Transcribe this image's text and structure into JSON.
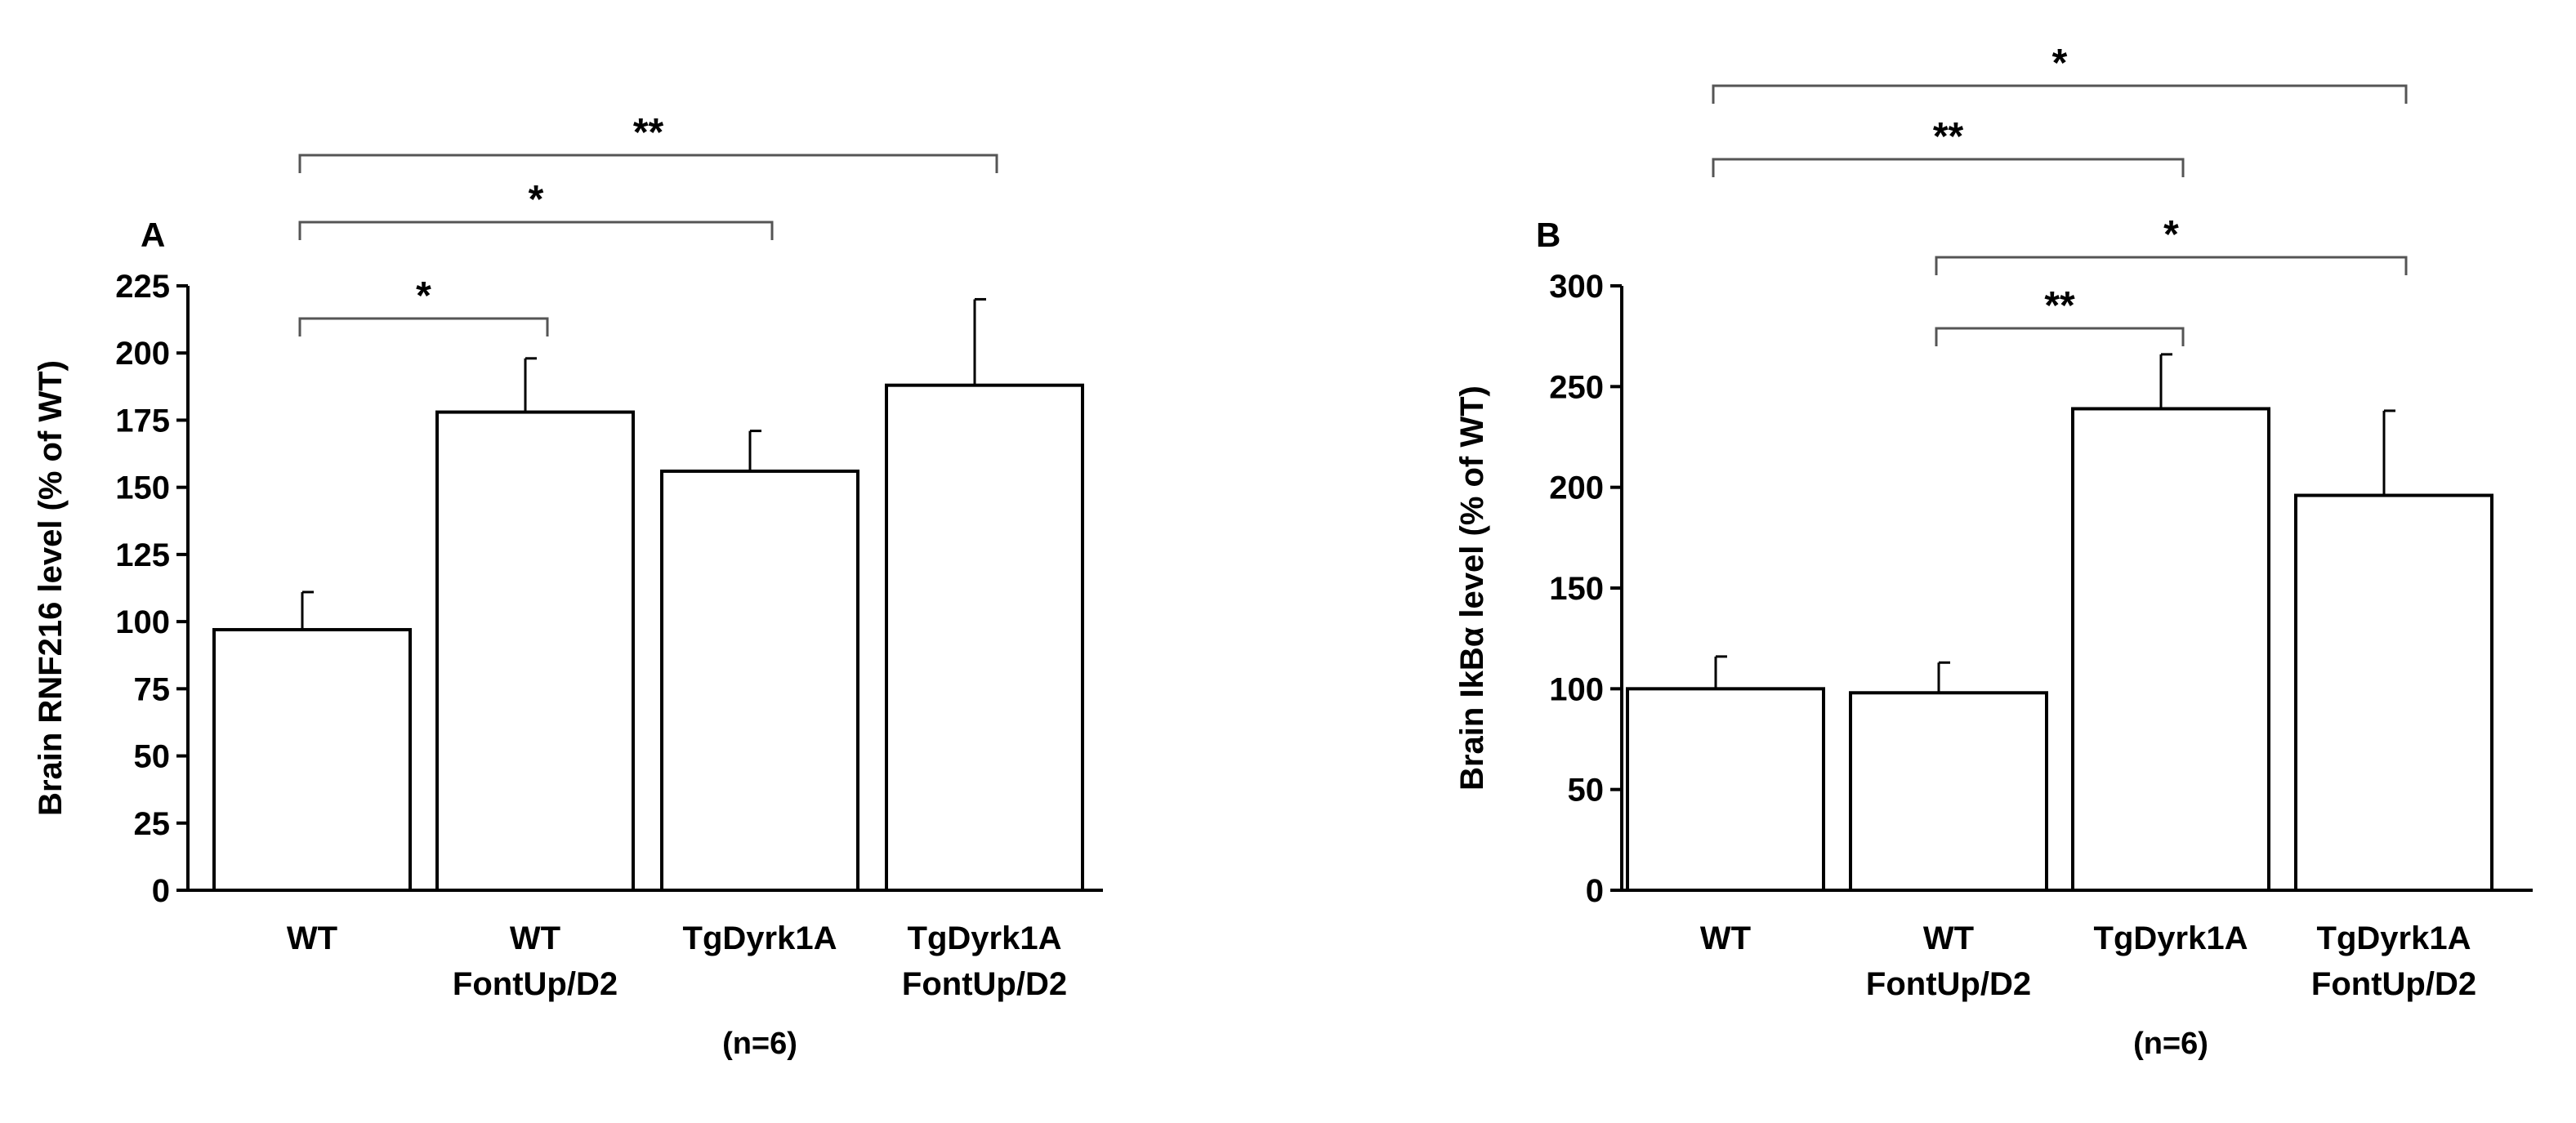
{
  "chart_data": [
    {
      "type": "bar",
      "panel_label": "A",
      "ylabel": "Brain RNF216  level (%  of WT)",
      "ylim": [
        0,
        225
      ],
      "yticks": [
        "0",
        "25",
        "50",
        "75",
        "100",
        "125",
        "150",
        "175",
        "200",
        "225"
      ],
      "categories": [
        {
          "line1": "WT",
          "line2": ""
        },
        {
          "line1": "WT",
          "line2": "FontUp/D2"
        },
        {
          "line1": "TgDyrk1A",
          "line2": ""
        },
        {
          "line1": "TgDyrk1A",
          "line2": "FontUp/D2"
        }
      ],
      "values": [
        97,
        178,
        156,
        188
      ],
      "errors": [
        14,
        20,
        15,
        32
      ],
      "note": "(n=6)",
      "significance": [
        {
          "from": 0,
          "to": 1,
          "label": "*"
        },
        {
          "from": 0,
          "to": 2,
          "label": "*"
        },
        {
          "from": 0,
          "to": 3,
          "label": "**"
        }
      ]
    },
    {
      "type": "bar",
      "panel_label": "B",
      "ylabel": "Brain IkBα level (%  of WT)",
      "ylim": [
        0,
        300
      ],
      "yticks": [
        "0",
        "50",
        "100",
        "150",
        "200",
        "250",
        "300"
      ],
      "categories": [
        {
          "line1": "WT",
          "line2": ""
        },
        {
          "line1": "WT",
          "line2": "FontUp/D2"
        },
        {
          "line1": "TgDyrk1A",
          "line2": ""
        },
        {
          "line1": "TgDyrk1A",
          "line2": "FontUp/D2"
        }
      ],
      "values": [
        100,
        98,
        239,
        196
      ],
      "errors": [
        16,
        15,
        27,
        42
      ],
      "note": "(n=6)",
      "significance": [
        {
          "from": 1,
          "to": 2,
          "label": "**"
        },
        {
          "from": 1,
          "to": 3,
          "label": "*"
        },
        {
          "from": 0,
          "to": 2,
          "label": "**"
        },
        {
          "from": 0,
          "to": 3,
          "label": "*"
        }
      ]
    }
  ]
}
